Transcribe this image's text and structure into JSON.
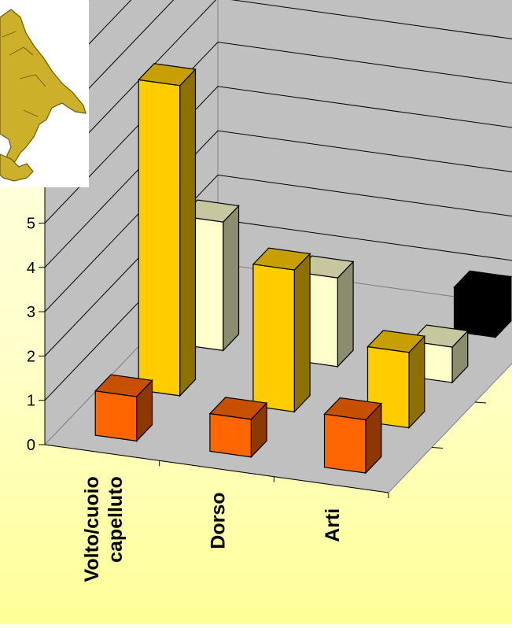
{
  "chart_data": {
    "type": "bar",
    "subtype": "3d-column",
    "categories": [
      "Volto/cuoio capelluto",
      "Dorso",
      "Arti"
    ],
    "category_labels": [
      [
        "Volto/cuoio",
        "capelluto"
      ],
      [
        "Dorso"
      ],
      [
        "Arti"
      ]
    ],
    "series": [
      {
        "values": [
          1.0,
          0.85,
          1.2
        ],
        "color": "#FF6600"
      },
      {
        "values": [
          7.0,
          3.2,
          1.7
        ],
        "color": "#FFCC00"
      },
      {
        "values": [
          2.9,
          2.0,
          0.8
        ],
        "color": "#FFFFCC"
      },
      {
        "values": [
          null,
          null,
          1.0
        ],
        "color": "#000000"
      }
    ],
    "ylim": [
      0,
      10
    ],
    "y_ticks_visible": [
      0,
      1,
      2,
      3,
      4,
      5
    ],
    "grid": true,
    "title": "",
    "xlabel": "",
    "ylabel": ""
  },
  "inset_image": {
    "icon": "southern-italy-map"
  }
}
